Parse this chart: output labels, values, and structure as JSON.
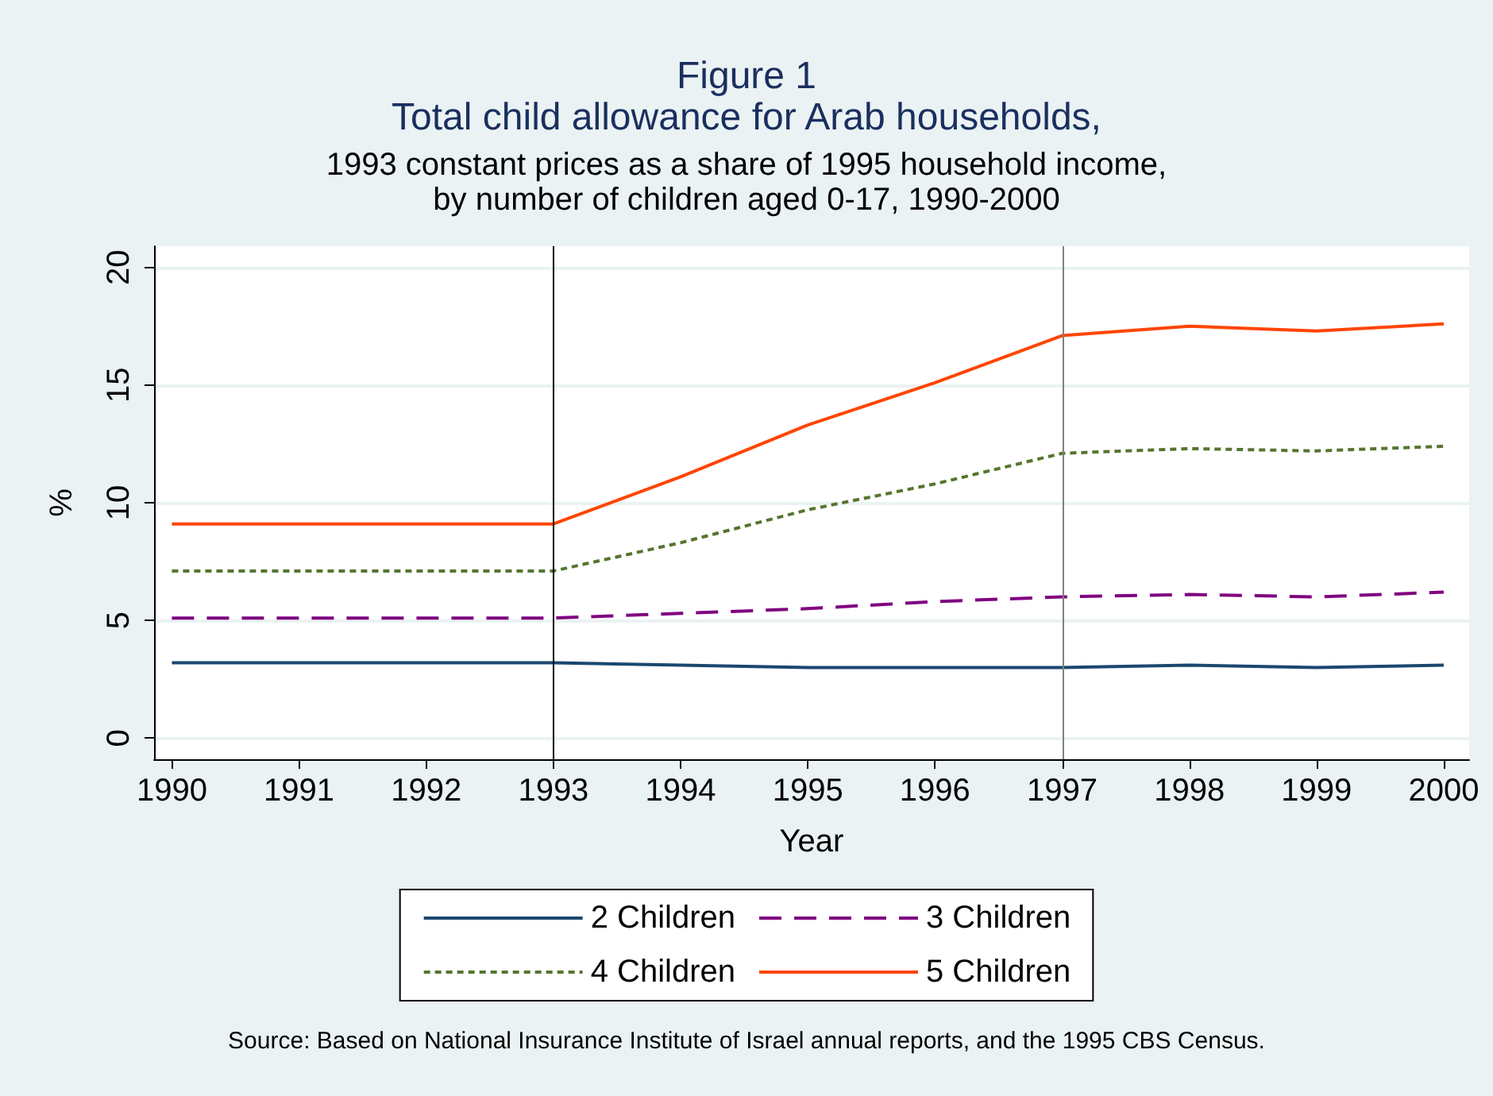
{
  "chart_data": {
    "type": "line",
    "title": "Figure 1\nTotal child allowance for Arab households,",
    "subtitle": "1993 constant prices as a share of 1995 household income,\nby number of children aged 0-17, 1990-2000",
    "xlabel": "Year",
    "ylabel": "%",
    "x": [
      1990,
      1991,
      1992,
      1993,
      1994,
      1995,
      1996,
      1997,
      1998,
      1999,
      2000
    ],
    "series": [
      {
        "name": "2 Children",
        "color": "#1a476f",
        "line_style": "solid",
        "values": [
          3.2,
          3.2,
          3.2,
          3.2,
          3.1,
          3.0,
          3.0,
          3.0,
          3.1,
          3.0,
          3.1
        ]
      },
      {
        "name": "3 Children",
        "color": "#800080",
        "line_style": "dashed",
        "values": [
          5.1,
          5.1,
          5.1,
          5.1,
          5.3,
          5.5,
          5.8,
          6.0,
          6.1,
          6.0,
          6.2
        ]
      },
      {
        "name": "4 Children",
        "color": "#55752f",
        "line_style": "dotted",
        "values": [
          7.1,
          7.1,
          7.1,
          7.1,
          8.3,
          9.7,
          10.8,
          12.1,
          12.3,
          12.2,
          12.4
        ]
      },
      {
        "name": "5 Children",
        "color": "#ff4500",
        "line_style": "solid",
        "values": [
          9.1,
          9.1,
          9.1,
          9.1,
          11.1,
          13.3,
          15.1,
          17.1,
          17.5,
          17.3,
          17.6
        ]
      }
    ],
    "xlim": [
      1989.86,
      2000.2
    ],
    "ylim": [
      -0.9,
      20.9
    ],
    "xticks": [
      1990,
      1991,
      1992,
      1993,
      1994,
      1995,
      1996,
      1997,
      1998,
      1999,
      2000
    ],
    "yticks": [
      0,
      5,
      10,
      15,
      20
    ],
    "ref_lines": [
      {
        "axis": "x",
        "value": 1993,
        "color": "#000000"
      },
      {
        "axis": "x",
        "value": 1997,
        "color": "#808080"
      }
    ],
    "grid": "y",
    "legend": "bottom",
    "marker": "none",
    "annotations": [
      "Source: Based on National Insurance Institute of Israel annual reports, and the 1995 CBS Census."
    ]
  }
}
